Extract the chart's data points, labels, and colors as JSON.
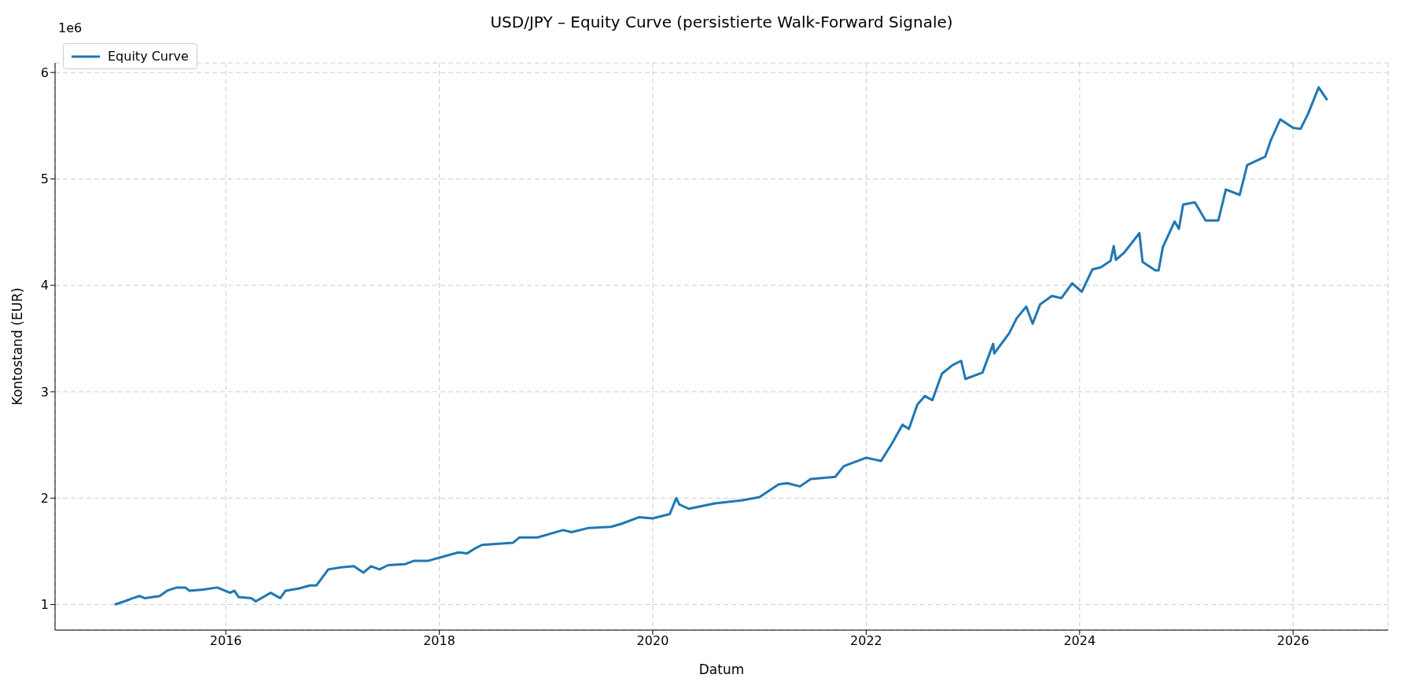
{
  "chart_data": {
    "type": "line",
    "title": "USD/JPY – Equity Curve (persistierte Walk-Forward Signale)",
    "xlabel": "Datum",
    "ylabel": "Kontostand (EUR)",
    "annotations": [
      "1e6"
    ],
    "x": [
      2014.96,
      2015.05,
      2015.13,
      2015.19,
      2015.24,
      2015.38,
      2015.45,
      2015.54,
      2015.62,
      2015.66,
      2015.79,
      2015.92,
      2016.04,
      2016.08,
      2016.12,
      2016.24,
      2016.28,
      2016.42,
      2016.51,
      2016.56,
      2016.68,
      2016.79,
      2016.85,
      2016.96,
      2017.08,
      2017.2,
      2017.29,
      2017.36,
      2017.44,
      2017.52,
      2017.68,
      2017.76,
      2017.89,
      2018.0,
      2018.18,
      2018.26,
      2018.34,
      2018.4,
      2018.53,
      2018.69,
      2018.75,
      2018.92,
      2019.16,
      2019.24,
      2019.4,
      2019.61,
      2019.71,
      2019.87,
      2020.0,
      2020.16,
      2020.22,
      2020.25,
      2020.34,
      2020.58,
      2020.84,
      2021.0,
      2021.18,
      2021.26,
      2021.38,
      2021.48,
      2021.71,
      2021.79,
      2022.0,
      2022.14,
      2022.24,
      2022.34,
      2022.4,
      2022.48,
      2022.55,
      2022.62,
      2022.71,
      2022.81,
      2022.89,
      2022.93,
      2023.09,
      2023.19,
      2023.2,
      2023.34,
      2023.41,
      2023.5,
      2023.56,
      2023.63,
      2023.74,
      2023.83,
      2023.93,
      2024.02,
      2024.12,
      2024.2,
      2024.29,
      2024.32,
      2024.34,
      2024.42,
      2024.56,
      2024.59,
      2024.71,
      2024.74,
      2024.78,
      2024.89,
      2024.93,
      2024.97,
      2025.08,
      2025.18,
      2025.3,
      2025.37,
      2025.5,
      2025.57,
      2025.74,
      2025.79,
      2025.88,
      2026.0,
      2026.07,
      2026.14,
      2026.24,
      2026.32
    ],
    "series": [
      {
        "name": "Equity Curve",
        "color": "#1f77b4",
        "values": [
          1.0,
          1.03,
          1.06,
          1.08,
          1.06,
          1.08,
          1.13,
          1.16,
          1.16,
          1.13,
          1.14,
          1.16,
          1.11,
          1.13,
          1.07,
          1.06,
          1.03,
          1.11,
          1.06,
          1.13,
          1.15,
          1.18,
          1.18,
          1.33,
          1.35,
          1.36,
          1.3,
          1.36,
          1.33,
          1.37,
          1.38,
          1.41,
          1.41,
          1.44,
          1.49,
          1.48,
          1.53,
          1.56,
          1.57,
          1.58,
          1.63,
          1.63,
          1.7,
          1.68,
          1.72,
          1.73,
          1.76,
          1.82,
          1.81,
          1.85,
          2.0,
          1.94,
          1.9,
          1.95,
          1.98,
          2.01,
          2.13,
          2.14,
          2.11,
          2.18,
          2.2,
          2.3,
          2.38,
          2.35,
          2.51,
          2.69,
          2.65,
          2.88,
          2.96,
          2.92,
          3.17,
          3.25,
          3.29,
          3.12,
          3.18,
          3.45,
          3.36,
          3.55,
          3.69,
          3.8,
          3.64,
          3.82,
          3.9,
          3.88,
          4.02,
          3.94,
          4.15,
          4.17,
          4.23,
          4.37,
          4.24,
          4.31,
          4.49,
          4.22,
          4.14,
          4.14,
          4.36,
          4.6,
          4.53,
          4.76,
          4.78,
          4.61,
          4.61,
          4.9,
          4.85,
          5.13,
          5.21,
          5.36,
          5.56,
          5.48,
          5.47,
          5.61,
          5.86,
          5.74
        ]
      }
    ],
    "xlim": [
      2014.4,
      2026.89
    ],
    "xticks": [
      2016,
      2018,
      2020,
      2022,
      2024,
      2026
    ],
    "ylim": [
      0.76,
      6.09
    ],
    "yticks": [
      1,
      2,
      3,
      4,
      5,
      6
    ],
    "grid": true,
    "legend": "top left",
    "marker": "none",
    "line_style": "solid"
  }
}
